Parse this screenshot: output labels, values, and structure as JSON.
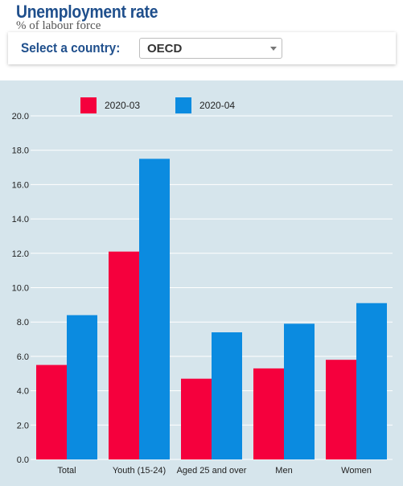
{
  "header": {
    "title": "Unemployment rate",
    "subtitle": "% of labour force"
  },
  "selector": {
    "label": "Select a country:",
    "selected": "OECD"
  },
  "icons": {
    "dropdown": "chevron-down-icon"
  },
  "chart_data": {
    "type": "bar",
    "categories": [
      "Total",
      "Youth (15-24)",
      "Aged 25 and over",
      "Men",
      "Women"
    ],
    "series": [
      {
        "name": "2020-03",
        "color": "#f5003d",
        "values": [
          5.5,
          12.1,
          4.7,
          5.3,
          5.8
        ]
      },
      {
        "name": "2020-04",
        "color": "#0b8be0",
        "values": [
          8.4,
          17.5,
          7.4,
          7.9,
          9.1
        ]
      }
    ],
    "ylim": [
      0,
      20
    ],
    "yticks": [
      "0.0",
      "2.0",
      "4.0",
      "6.0",
      "8.0",
      "10.0",
      "12.0",
      "14.0",
      "16.0",
      "18.0",
      "20.0"
    ],
    "grid": true,
    "legend_position": "top",
    "background": "#d6e5ec",
    "gridline_color": "#ffffff"
  }
}
